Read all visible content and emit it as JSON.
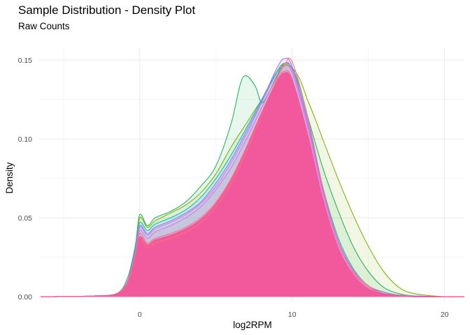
{
  "chart_data": {
    "type": "area",
    "title": "Sample Distribution - Density Plot",
    "subtitle": "Raw Counts",
    "xlabel": "log2RPM",
    "ylabel": "Density",
    "xlim": [
      -6.6,
      21.3
    ],
    "ylim": [
      -0.003,
      0.158
    ],
    "x_ticks": [
      0,
      10,
      20
    ],
    "y_ticks": [
      0.0,
      0.05,
      0.1,
      0.15
    ],
    "y_tick_labels": [
      "0.00",
      "0.05",
      "0.10",
      "0.15"
    ],
    "grid": true,
    "legend": "none",
    "series": [
      {
        "color": "#1FB25A",
        "x": [
          -6.5,
          -3,
          -1.5,
          -0.8,
          -0.3,
          0,
          0.5,
          1,
          2,
          3,
          4,
          5,
          6,
          6.6,
          7,
          7.6,
          8,
          8.5,
          9,
          9.5,
          10,
          10.5,
          11,
          12,
          13,
          14,
          15,
          16,
          17,
          18,
          20,
          21.3
        ],
        "y": [
          0,
          0.0005,
          0.002,
          0.012,
          0.032,
          0.052,
          0.045,
          0.05,
          0.054,
          0.06,
          0.07,
          0.083,
          0.11,
          0.135,
          0.14,
          0.133,
          0.123,
          0.13,
          0.14,
          0.148,
          0.145,
          0.133,
          0.115,
          0.082,
          0.055,
          0.032,
          0.016,
          0.006,
          0.002,
          0.0005,
          0,
          0
        ]
      },
      {
        "color": "#7CAE00",
        "x": [
          -6.5,
          -3,
          -1.5,
          -0.8,
          -0.3,
          0,
          0.5,
          1,
          2,
          3,
          4,
          5,
          6,
          7,
          8,
          8.5,
          9,
          9.5,
          10,
          10.5,
          11,
          11.5,
          12,
          13,
          14,
          15,
          16,
          17,
          18,
          20,
          21.3
        ],
        "y": [
          0,
          0.0005,
          0.002,
          0.01,
          0.03,
          0.05,
          0.044,
          0.048,
          0.053,
          0.058,
          0.066,
          0.078,
          0.095,
          0.11,
          0.125,
          0.133,
          0.142,
          0.147,
          0.145,
          0.138,
          0.125,
          0.113,
          0.1,
          0.075,
          0.052,
          0.032,
          0.016,
          0.006,
          0.002,
          0,
          0
        ]
      },
      {
        "color": "#00BFC4",
        "x": [
          -6.5,
          -3,
          -1.5,
          -0.8,
          -0.3,
          0,
          0.5,
          1,
          2,
          3,
          4,
          5,
          6,
          7,
          8,
          9,
          9.5,
          10,
          11,
          12,
          13,
          14,
          15,
          16,
          17,
          18,
          20,
          21.3
        ],
        "y": [
          0,
          0.0005,
          0.002,
          0.01,
          0.03,
          0.047,
          0.042,
          0.046,
          0.05,
          0.055,
          0.063,
          0.075,
          0.09,
          0.107,
          0.125,
          0.143,
          0.148,
          0.144,
          0.112,
          0.07,
          0.038,
          0.018,
          0.007,
          0.003,
          0.001,
          0.0005,
          0,
          0
        ]
      },
      {
        "color": "#9B72FF",
        "x": [
          -6.5,
          -3,
          -1.5,
          -0.8,
          -0.3,
          0,
          0.5,
          1,
          2,
          3,
          4,
          5,
          6,
          7,
          8,
          9,
          9.5,
          10,
          11,
          12,
          13,
          14,
          15,
          16,
          17,
          18,
          20,
          21.3
        ],
        "y": [
          0,
          0.0005,
          0.002,
          0.01,
          0.028,
          0.045,
          0.04,
          0.044,
          0.048,
          0.053,
          0.06,
          0.072,
          0.087,
          0.105,
          0.124,
          0.145,
          0.151,
          0.146,
          0.112,
          0.068,
          0.036,
          0.017,
          0.007,
          0.003,
          0.001,
          0.0005,
          0,
          0
        ]
      },
      {
        "color": "#C77CFF",
        "x": [
          -6.5,
          -3,
          -1.5,
          -0.8,
          -0.3,
          0,
          0.5,
          1,
          2,
          3,
          4,
          5,
          6,
          7,
          8,
          9,
          9.5,
          10,
          11,
          12,
          13,
          14,
          15,
          16,
          17,
          18,
          20,
          21.3
        ],
        "y": [
          0,
          0.0005,
          0.002,
          0.01,
          0.028,
          0.044,
          0.039,
          0.043,
          0.047,
          0.052,
          0.059,
          0.07,
          0.085,
          0.103,
          0.123,
          0.142,
          0.148,
          0.144,
          0.11,
          0.067,
          0.035,
          0.016,
          0.006,
          0.002,
          0.001,
          0,
          0,
          0
        ]
      },
      {
        "color": "#E76BF3",
        "x": [
          -6.5,
          -3,
          -1.5,
          -0.8,
          -0.3,
          0,
          0.5,
          1,
          2,
          3,
          4,
          5,
          6,
          7,
          8,
          9,
          9.5,
          10,
          11,
          12,
          13,
          14,
          15,
          16,
          17,
          18,
          20,
          21.3
        ],
        "y": [
          0,
          0.0005,
          0.002,
          0.01,
          0.027,
          0.042,
          0.037,
          0.041,
          0.045,
          0.05,
          0.057,
          0.068,
          0.082,
          0.1,
          0.12,
          0.139,
          0.146,
          0.142,
          0.108,
          0.066,
          0.034,
          0.016,
          0.006,
          0.002,
          0.001,
          0,
          0,
          0
        ]
      },
      {
        "color": "#FF6699",
        "x": [
          -6.5,
          -3,
          -1.5,
          -0.8,
          -0.3,
          0,
          0.5,
          1,
          2,
          3,
          4,
          5,
          6,
          7,
          8,
          9,
          9.5,
          10,
          11,
          12,
          13,
          14,
          15,
          16,
          17,
          18,
          20,
          21.3
        ],
        "y": [
          0,
          0.0005,
          0.002,
          0.009,
          0.026,
          0.04,
          0.034,
          0.037,
          0.04,
          0.044,
          0.05,
          0.06,
          0.075,
          0.095,
          0.117,
          0.137,
          0.143,
          0.138,
          0.104,
          0.063,
          0.032,
          0.015,
          0.006,
          0.002,
          0.001,
          0,
          0,
          0
        ]
      },
      {
        "color": "#F8766D",
        "x": [
          -6.5,
          -3,
          -1.5,
          -0.8,
          -0.3,
          0,
          0.5,
          1,
          2,
          3,
          4,
          5,
          6,
          7,
          8,
          9,
          9.5,
          10,
          11,
          12,
          13,
          14,
          15,
          16,
          17,
          18,
          20,
          21.3
        ],
        "y": [
          0,
          0.0005,
          0.002,
          0.008,
          0.024,
          0.037,
          0.031,
          0.034,
          0.037,
          0.041,
          0.047,
          0.057,
          0.072,
          0.092,
          0.115,
          0.138,
          0.147,
          0.149,
          0.115,
          0.07,
          0.036,
          0.017,
          0.007,
          0.002,
          0.001,
          0,
          0,
          0
        ]
      },
      {
        "color": "#F2559A",
        "x": [
          -6.5,
          -3,
          -1.5,
          -0.8,
          -0.3,
          0,
          0.5,
          1,
          2,
          3,
          4,
          5,
          6,
          7,
          8,
          9,
          9.5,
          10,
          11,
          12,
          13,
          14,
          15,
          16,
          17,
          18,
          20,
          21.3
        ],
        "y": [
          0,
          0.0005,
          0.002,
          0.009,
          0.025,
          0.038,
          0.033,
          0.036,
          0.039,
          0.043,
          0.049,
          0.059,
          0.074,
          0.094,
          0.116,
          0.136,
          0.142,
          0.137,
          0.103,
          0.062,
          0.031,
          0.014,
          0.005,
          0.002,
          0.001,
          0,
          0,
          0
        ]
      }
    ]
  }
}
